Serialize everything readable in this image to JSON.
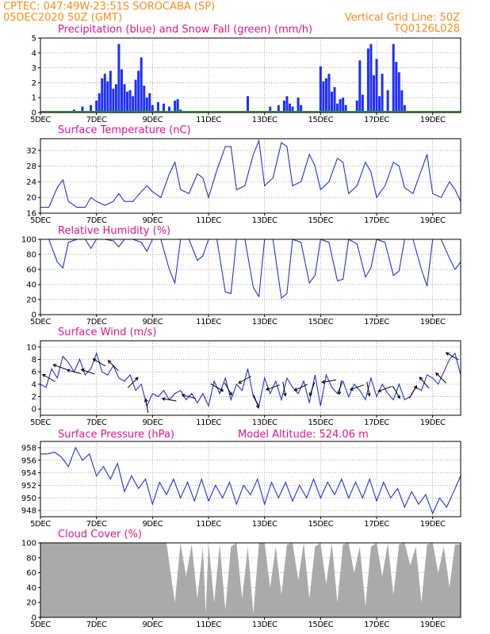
{
  "header": {
    "source_line": "CPTEC:   047:49W-23:51S   SOROCABA (SP)",
    "date_line": "05DEC2020 50Z (GMT)",
    "grid_note": "Vertical Grid Line: 50Z",
    "run_code": "TQ0126L028"
  },
  "model_altitude": "Model Altitude: 524.06 m",
  "colors": {
    "header": "#ff8c1a",
    "title": "#e8138c",
    "line": "#2233dd",
    "precip": "#1f2fff",
    "snow": "#22aa22",
    "cloud": "#aaaaaa"
  },
  "x_axis": {
    "day_labels": [
      "5DEC",
      "7DEC",
      "9DEC",
      "11DEC",
      "13DEC",
      "15DEC",
      "17DEC",
      "19DEC"
    ],
    "day_positions": [
      5,
      7,
      9,
      11,
      13,
      15,
      17,
      19
    ],
    "range": [
      5,
      20
    ]
  },
  "chart_data": [
    {
      "id": "precip",
      "type": "bar",
      "title": "Precipitation (blue) and Snow Fall (green) (mm/h)",
      "ylim": [
        0,
        5
      ],
      "yticks": [
        0,
        1,
        2,
        3,
        4,
        5
      ],
      "grid": true,
      "series": [
        {
          "name": "Precipitation",
          "color": "#1f2fff",
          "x": [
            6.2,
            6.5,
            6.8,
            7.0,
            7.1,
            7.2,
            7.3,
            7.4,
            7.5,
            7.6,
            7.7,
            7.8,
            7.9,
            8.0,
            8.1,
            8.2,
            8.3,
            8.4,
            8.5,
            8.6,
            8.7,
            8.8,
            8.9,
            9.0,
            9.2,
            9.4,
            9.6,
            9.8,
            9.9,
            10.0,
            12.4,
            13.2,
            13.5,
            13.7,
            13.8,
            13.9,
            14.0,
            14.2,
            14.3,
            15.0,
            15.1,
            15.2,
            15.3,
            15.4,
            15.5,
            15.6,
            15.7,
            15.8,
            15.9,
            16.3,
            16.4,
            16.5,
            16.7,
            16.8,
            16.9,
            17.0,
            17.1,
            17.2,
            17.4,
            17.6,
            17.7,
            17.8,
            17.9,
            18.0
          ],
          "values": [
            0.2,
            0.4,
            0.5,
            0.8,
            1.3,
            2.3,
            2.6,
            2.1,
            2.8,
            1.6,
            1.9,
            4.6,
            2.9,
            1.9,
            1.4,
            1.5,
            1.1,
            2.2,
            2.8,
            3.7,
            1.8,
            1.0,
            1.3,
            0.5,
            0.7,
            0.6,
            0.4,
            0.8,
            0.9,
            0.2,
            1.1,
            0.4,
            0.5,
            0.8,
            1.1,
            0.6,
            0.4,
            1.0,
            0.5,
            3.1,
            2.1,
            2.3,
            2.6,
            1.4,
            1.7,
            0.6,
            0.9,
            1.0,
            0.5,
            0.8,
            3.5,
            1.2,
            4.3,
            4.6,
            2.5,
            3.6,
            1.1,
            2.6,
            1.5,
            4.6,
            3.4,
            2.7,
            1.5,
            0.5
          ]
        },
        {
          "name": "Snow Fall",
          "color": "#22aa22",
          "x": [
            5,
            20
          ],
          "values": [
            0,
            0
          ]
        }
      ]
    },
    {
      "id": "temp",
      "type": "line",
      "title": "Surface Temperature (nC)",
      "ylim": [
        16,
        35
      ],
      "yticks": [
        16,
        20,
        24,
        28,
        32
      ],
      "grid": true,
      "series": [
        {
          "name": "Temperature",
          "x": [
            5.0,
            5.3,
            5.6,
            5.8,
            6.0,
            6.3,
            6.6,
            6.8,
            7.0,
            7.3,
            7.6,
            7.8,
            8.0,
            8.3,
            8.6,
            8.8,
            9.0,
            9.3,
            9.6,
            9.8,
            10.0,
            10.3,
            10.6,
            10.8,
            11.0,
            11.3,
            11.6,
            11.8,
            12.0,
            12.3,
            12.6,
            12.8,
            13.0,
            13.3,
            13.6,
            13.8,
            14.0,
            14.3,
            14.6,
            14.8,
            15.0,
            15.3,
            15.6,
            15.8,
            16.0,
            16.3,
            16.6,
            16.8,
            17.0,
            17.3,
            17.6,
            17.8,
            18.0,
            18.3,
            18.6,
            18.8,
            19.0,
            19.3,
            19.6,
            19.8,
            20.0
          ],
          "values": [
            17.5,
            17.5,
            22.5,
            24.5,
            19,
            17.5,
            17.5,
            20,
            19,
            18,
            19,
            21,
            19,
            19,
            21.5,
            23,
            21.5,
            20,
            26,
            29,
            22,
            21,
            26,
            25,
            20,
            27,
            33,
            33,
            22,
            23,
            31,
            34.5,
            23,
            25,
            34,
            33,
            23,
            24,
            31,
            28,
            22,
            24,
            30,
            29,
            21,
            23,
            29,
            26.5,
            20,
            23,
            29,
            28,
            22.5,
            21,
            27,
            31,
            21,
            20,
            24,
            22,
            19
          ]
        }
      ]
    },
    {
      "id": "rh",
      "type": "line",
      "title": "Relative Humidity (%)",
      "ylim": [
        0,
        100
      ],
      "yticks": [
        0,
        20,
        40,
        60,
        80,
        100
      ],
      "grid": true,
      "series": [
        {
          "name": "Relative Humidity",
          "x": [
            5.0,
            5.3,
            5.6,
            5.8,
            6.0,
            6.3,
            6.6,
            6.8,
            7.0,
            7.3,
            7.6,
            7.8,
            8.0,
            8.3,
            8.6,
            8.8,
            9.0,
            9.3,
            9.6,
            9.8,
            10.0,
            10.3,
            10.6,
            10.8,
            11.0,
            11.3,
            11.6,
            11.8,
            12.0,
            12.3,
            12.6,
            12.8,
            13.0,
            13.3,
            13.6,
            13.8,
            14.0,
            14.3,
            14.6,
            14.8,
            15.0,
            15.3,
            15.6,
            15.8,
            16.0,
            16.3,
            16.6,
            16.8,
            17.0,
            17.3,
            17.6,
            17.8,
            18.0,
            18.3,
            18.6,
            18.8,
            19.0,
            19.3,
            19.6,
            19.8,
            20.0
          ],
          "values": [
            100,
            100,
            70,
            62,
            96,
            100,
            100,
            88,
            100,
            100,
            98,
            90,
            100,
            100,
            96,
            84,
            100,
            100,
            60,
            42,
            100,
            100,
            72,
            78,
            100,
            100,
            30,
            28,
            100,
            100,
            36,
            24,
            100,
            100,
            22,
            28,
            100,
            96,
            42,
            52,
            100,
            96,
            45,
            47,
            100,
            94,
            50,
            62,
            100,
            96,
            52,
            58,
            100,
            100,
            60,
            38,
            100,
            100,
            75,
            60,
            70
          ]
        }
      ]
    },
    {
      "id": "wind",
      "type": "line",
      "title": "Surface Wind (m/s)",
      "ylim": [
        -1,
        11
      ],
      "yticks": [
        0,
        2,
        4,
        6,
        8,
        10
      ],
      "grid": true,
      "series": [
        {
          "name": "Wind Speed",
          "x": [
            5.0,
            5.2,
            5.4,
            5.6,
            5.8,
            6.0,
            6.2,
            6.4,
            6.6,
            6.8,
            7.0,
            7.2,
            7.4,
            7.6,
            7.8,
            8.0,
            8.2,
            8.4,
            8.6,
            8.8,
            9.0,
            9.2,
            9.4,
            9.6,
            9.8,
            10.0,
            10.2,
            10.4,
            10.6,
            10.8,
            11.0,
            11.2,
            11.4,
            11.6,
            11.8,
            12.0,
            12.2,
            12.4,
            12.6,
            12.8,
            13.0,
            13.2,
            13.4,
            13.6,
            13.8,
            14.0,
            14.2,
            14.4,
            14.6,
            14.8,
            15.0,
            15.2,
            15.4,
            15.6,
            15.8,
            16.0,
            16.2,
            16.4,
            16.6,
            16.8,
            17.0,
            17.2,
            17.4,
            17.6,
            17.8,
            18.0,
            18.2,
            18.4,
            18.6,
            18.8,
            19.0,
            19.2,
            19.4,
            19.6,
            19.8,
            20.0
          ],
          "values": [
            4,
            3.5,
            6.5,
            5,
            8.5,
            7.5,
            6,
            8,
            5.5,
            6.5,
            9,
            6,
            5.5,
            7,
            5,
            4.5,
            5.5,
            3,
            4,
            0.5,
            2.5,
            2,
            3,
            1.5,
            2.5,
            3,
            1.5,
            2.5,
            1,
            2.5,
            0.5,
            4.5,
            2.5,
            5,
            1.5,
            4,
            3,
            6.5,
            2,
            0.5,
            5,
            2.5,
            4.5,
            1.5,
            5,
            3.5,
            2.5,
            4.5,
            1,
            5.5,
            0.5,
            5.5,
            3.5,
            2.5,
            4.5,
            2,
            4,
            3,
            1.5,
            5,
            2,
            4,
            2.5,
            1.5,
            4,
            1.5,
            2,
            3.5,
            3,
            5.5,
            5,
            4,
            6,
            8,
            9,
            5.5
          ]
        },
        {
          "name": "Wind direction arrows",
          "x": [
            5.3,
            5.7,
            6.2,
            6.7,
            7.1,
            7.6,
            8.3,
            8.8,
            9.6,
            10.3,
            11.3,
            11.7,
            12.3,
            12.7,
            13.3,
            13.7,
            14.3,
            14.7,
            15.3,
            15.7,
            16.3,
            16.7,
            17.3,
            17.7,
            18.3,
            18.7,
            19.3,
            19.7
          ],
          "values": [
            300,
            290,
            285,
            290,
            300,
            315,
            45,
            350,
            280,
            285,
            120,
            150,
            240,
            160,
            250,
            170,
            245,
            200,
            260,
            190,
            250,
            170,
            250,
            150,
            30,
            320,
            315,
            300
          ]
        }
      ]
    },
    {
      "id": "pressure",
      "type": "line",
      "title": "Surface Pressure (hPa)",
      "ylim": [
        947,
        959
      ],
      "yticks": [
        948,
        950,
        952,
        954,
        956,
        958
      ],
      "grid": true,
      "series": [
        {
          "name": "Surface Pressure",
          "x": [
            5.0,
            5.25,
            5.5,
            5.75,
            6.0,
            6.25,
            6.5,
            6.75,
            7.0,
            7.25,
            7.5,
            7.75,
            8.0,
            8.25,
            8.5,
            8.75,
            9.0,
            9.25,
            9.5,
            9.75,
            10.0,
            10.25,
            10.5,
            10.75,
            11.0,
            11.25,
            11.5,
            11.75,
            12.0,
            12.25,
            12.5,
            12.75,
            13.0,
            13.25,
            13.5,
            13.75,
            14.0,
            14.25,
            14.5,
            14.75,
            15.0,
            15.25,
            15.5,
            15.75,
            16.0,
            16.25,
            16.5,
            16.75,
            17.0,
            17.25,
            17.5,
            17.75,
            18.0,
            18.25,
            18.5,
            18.75,
            19.0,
            19.25,
            19.5,
            19.75,
            20.0
          ],
          "values": [
            957,
            957,
            957.3,
            956.5,
            955,
            958,
            956,
            957,
            953.5,
            955,
            953,
            955.5,
            951,
            953.5,
            951.5,
            953,
            949,
            952.5,
            950.5,
            953,
            950,
            952.5,
            949.5,
            953,
            949.5,
            952,
            950,
            952.5,
            949,
            952,
            950.5,
            953,
            949,
            952.5,
            950,
            952.5,
            949.5,
            952,
            950,
            953,
            950,
            952.5,
            950.5,
            953,
            950,
            952.5,
            950,
            953,
            949.5,
            952.5,
            950,
            951.5,
            948.5,
            951,
            949,
            950.5,
            947.5,
            950,
            948.5,
            951,
            953.5
          ]
        }
      ]
    },
    {
      "id": "cloud",
      "type": "area",
      "title": "Cloud Cover (%)",
      "ylim": [
        0,
        100
      ],
      "yticks": [
        0,
        20,
        40,
        60,
        80,
        100
      ],
      "grid": true,
      "series": [
        {
          "name": "Cloud Cover",
          "x": [
            5.0,
            9.5,
            9.7,
            9.8,
            9.9,
            10.0,
            10.2,
            10.4,
            10.6,
            10.8,
            10.9,
            11.0,
            11.2,
            11.4,
            11.6,
            11.8,
            12.0,
            12.2,
            12.4,
            12.6,
            12.8,
            13.0,
            13.2,
            13.4,
            13.6,
            13.8,
            14.0,
            14.2,
            14.4,
            14.6,
            14.8,
            15.0,
            15.2,
            15.4,
            15.6,
            15.8,
            16.0,
            16.2,
            16.4,
            16.6,
            16.8,
            17.0,
            17.2,
            17.4,
            17.6,
            17.8,
            18.0,
            18.2,
            18.4,
            18.6,
            18.8,
            19.0,
            19.2,
            19.4,
            19.6,
            19.8,
            20.0
          ],
          "values": [
            100,
            100,
            45,
            20,
            60,
            100,
            55,
            98,
            25,
            95,
            5,
            100,
            20,
            98,
            10,
            95,
            100,
            25,
            95,
            5,
            100,
            100,
            40,
            95,
            30,
            98,
            100,
            50,
            100,
            25,
            95,
            100,
            45,
            100,
            20,
            98,
            100,
            60,
            95,
            15,
            95,
            100,
            55,
            100,
            30,
            98,
            100,
            70,
            95,
            20,
            98,
            100,
            60,
            95,
            40,
            98,
            98
          ]
        }
      ]
    }
  ]
}
